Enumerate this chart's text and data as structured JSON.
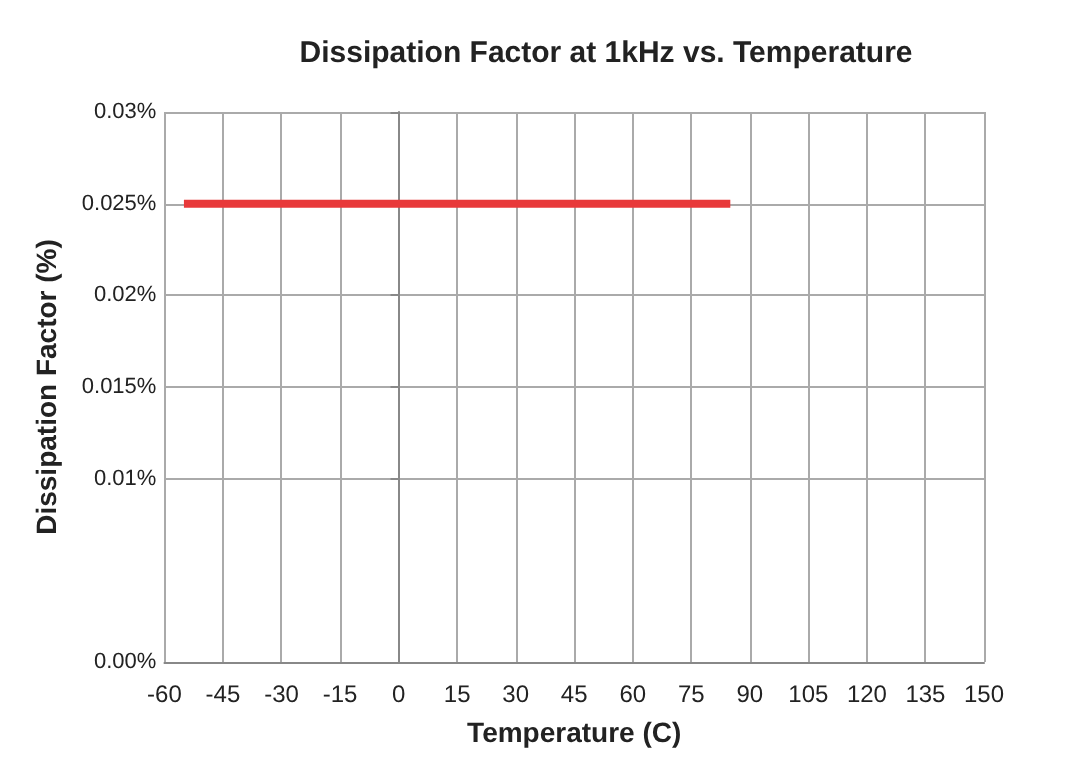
{
  "chart_data": {
    "type": "line",
    "title": "Dissipation Factor at 1kHz vs. Temperature",
    "xlabel": "Temperature (C)",
    "ylabel": "Dissipation Factor (%)",
    "x": [
      -55,
      85
    ],
    "series": [
      {
        "color": "#e8393a",
        "values": [
          0.025,
          0.025
        ]
      }
    ],
    "xlim": [
      -60,
      150
    ],
    "xticks": [
      -60,
      -45,
      -30,
      -15,
      0,
      15,
      30,
      45,
      60,
      75,
      90,
      105,
      120,
      135,
      150
    ],
    "ylim": [
      0,
      0.03
    ],
    "yticks": [
      {
        "value": 0,
        "label": "0.00%"
      },
      {
        "value": 0.01,
        "label": "0.01%"
      },
      {
        "value": 0.015,
        "label": "0.015%"
      },
      {
        "value": 0.02,
        "label": "0.02%"
      },
      {
        "value": 0.025,
        "label": "0.025%"
      },
      {
        "value": 0.03,
        "label": "0.03%"
      }
    ],
    "grid": true,
    "marker": "none",
    "line_style": "solid"
  }
}
